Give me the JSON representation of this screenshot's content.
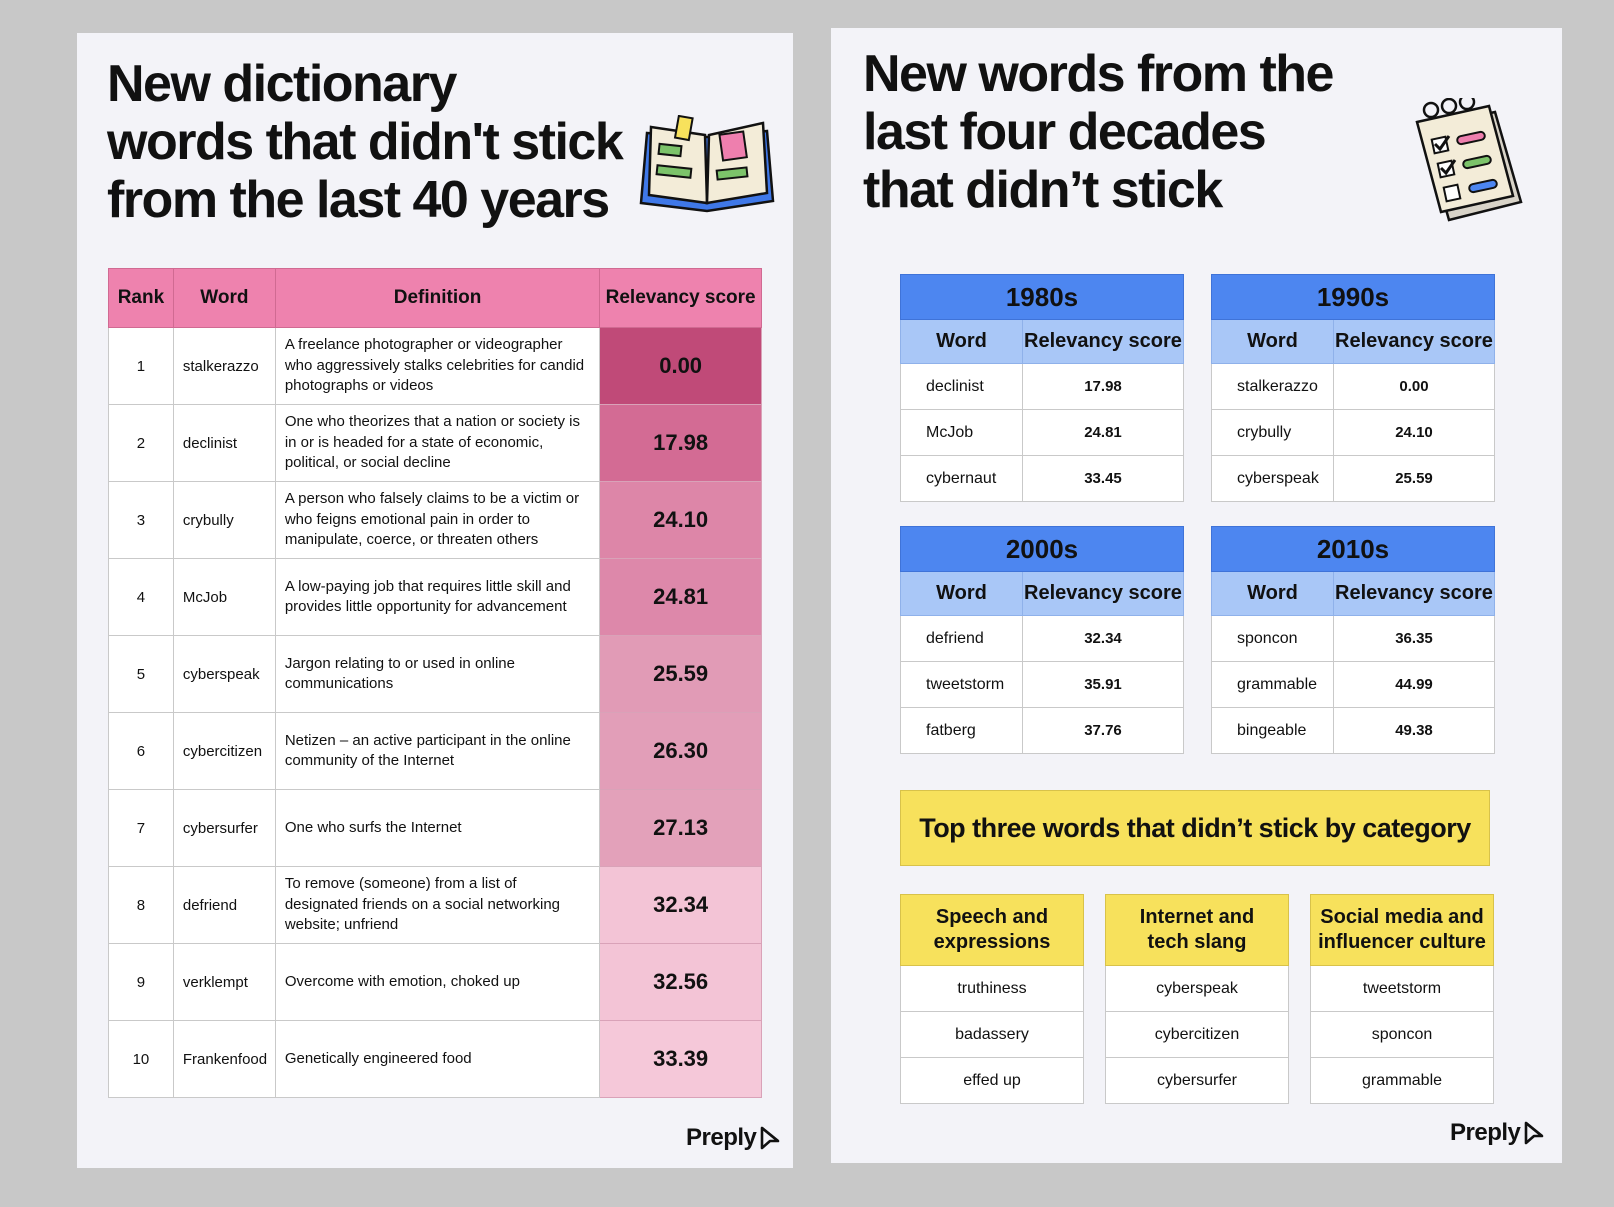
{
  "left": {
    "title": [
      "New dictionary",
      "words that didn't stick",
      "from the last 40 years"
    ],
    "icon": "open-book-icon",
    "columns": [
      "Rank",
      "Word",
      "Definition",
      "Relevancy score"
    ],
    "rows": [
      {
        "rank": "1",
        "word": "stalkerazzo",
        "definition": "A freelance photographer or videographer who aggressively stalks celebrities for candid photographs or videos",
        "score": "0.00",
        "color": "#c04a78"
      },
      {
        "rank": "2",
        "word": "declinist",
        "definition": "One who theorizes that a nation or society is in or is headed for a state of economic, political, or social decline",
        "score": "17.98",
        "color": "#d36b94"
      },
      {
        "rank": "3",
        "word": "crybully",
        "definition": "A person who falsely claims to be a victim or who feigns emotional pain in order to manipulate, coerce, or threaten others",
        "score": "24.10",
        "color": "#dd86a8"
      },
      {
        "rank": "4",
        "word": "McJob",
        "definition": "A low-paying job that requires little skill and provides little opportunity for advancement",
        "score": "24.81",
        "color": "#dd88aa"
      },
      {
        "rank": "5",
        "word": "cyberspeak",
        "definition": "Jargon relating to or used in online communications",
        "score": "25.59",
        "color": "#e19bb6"
      },
      {
        "rank": "6",
        "word": "cybercitizen",
        "definition": "Netizen – an active participant in the online community of the Internet",
        "score": "26.30",
        "color": "#e29eb8"
      },
      {
        "rank": "7",
        "word": "cybersurfer",
        "definition": "One who surfs the Internet",
        "score": "27.13",
        "color": "#e3a1ba"
      },
      {
        "rank": "8",
        "word": "defriend",
        "definition": "To remove (someone) from a list of designated friends on a social networking website; unfriend",
        "score": "32.34",
        "color": "#f3c4d6"
      },
      {
        "rank": "9",
        "word": "verklempt",
        "definition": "Overcome with emotion, choked up",
        "score": "32.56",
        "color": "#f3c4d6"
      },
      {
        "rank": "10",
        "word": "Frankenfood",
        "definition": "Genetically engineered food",
        "score": "33.39",
        "color": "#f5c8d9"
      }
    ],
    "logo": "Preply"
  },
  "right": {
    "title": [
      "New words from the",
      "last four decades",
      "that didn’t stick"
    ],
    "icon": "checklist-notepad-icon",
    "decades": [
      {
        "label": "1980s",
        "col_word": "Word",
        "col_score": "Relevancy score",
        "rows": [
          {
            "word": "declinist",
            "score": "17.98"
          },
          {
            "word": "McJob",
            "score": "24.81"
          },
          {
            "word": "cybernaut",
            "score": "33.45"
          }
        ]
      },
      {
        "label": "1990s",
        "col_word": "Word",
        "col_score": "Relevancy score",
        "rows": [
          {
            "word": "stalkerazzo",
            "score": "0.00"
          },
          {
            "word": "crybully",
            "score": "24.10"
          },
          {
            "word": "cyberspeak",
            "score": "25.59"
          }
        ]
      },
      {
        "label": "2000s",
        "col_word": "Word",
        "col_score": "Relevancy score",
        "rows": [
          {
            "word": "defriend",
            "score": "32.34"
          },
          {
            "word": "tweetstorm",
            "score": "35.91"
          },
          {
            "word": "fatberg",
            "score": "37.76"
          }
        ]
      },
      {
        "label": "2010s",
        "col_word": "Word",
        "col_score": "Relevancy score",
        "rows": [
          {
            "word": "sponcon",
            "score": "36.35"
          },
          {
            "word": "grammable",
            "score": "44.99"
          },
          {
            "word": "bingeable",
            "score": "49.38"
          }
        ]
      }
    ],
    "banner": "Top three words that didn’t stick by category",
    "categories": [
      {
        "name": [
          "Speech and",
          "expressions"
        ],
        "words": [
          "truthiness",
          "badassery",
          "effed up"
        ]
      },
      {
        "name": [
          "Internet and",
          "tech slang"
        ],
        "words": [
          "cyberspeak",
          "cybercitizen",
          "cybersurfer"
        ]
      },
      {
        "name": [
          "Social media and",
          "influencer culture"
        ],
        "words": [
          "tweetstorm",
          "sponcon",
          "grammable"
        ]
      }
    ],
    "logo": "Preply"
  },
  "colors": {
    "pink_header": "#ee82ae",
    "blue_header": "#4d86f0",
    "blue_sub": "#a9c7f7",
    "yellow": "#f7e15c",
    "panel_bg": "#f3f3f8",
    "page_bg": "#c8c8c8"
  }
}
